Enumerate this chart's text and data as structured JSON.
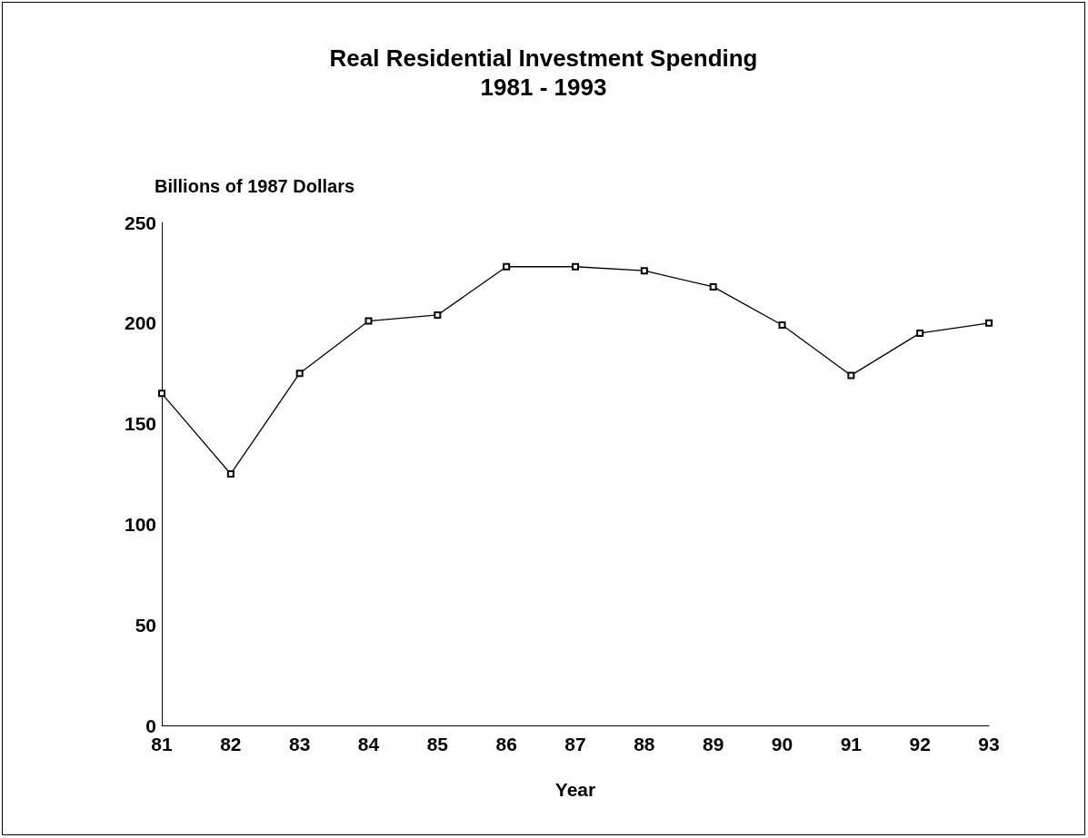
{
  "chart_data": {
    "type": "line",
    "title": "Real Residential Investment Spending\n1981 - 1993",
    "ylabel": "Billions of 1987 Dollars",
    "xlabel": "Year",
    "categories": [
      "81",
      "82",
      "83",
      "84",
      "85",
      "86",
      "87",
      "88",
      "89",
      "90",
      "91",
      "92",
      "93"
    ],
    "series": [
      {
        "color": "#000000",
        "values": [
          165,
          125,
          175,
          201,
          204,
          228,
          228,
          226,
          218,
          199,
          174,
          195,
          200
        ]
      }
    ],
    "ylim": [
      0,
      250
    ],
    "yticks": [
      0,
      50,
      100,
      150,
      200,
      250
    ],
    "grid": false,
    "marker": "square",
    "line_style": "solid"
  }
}
